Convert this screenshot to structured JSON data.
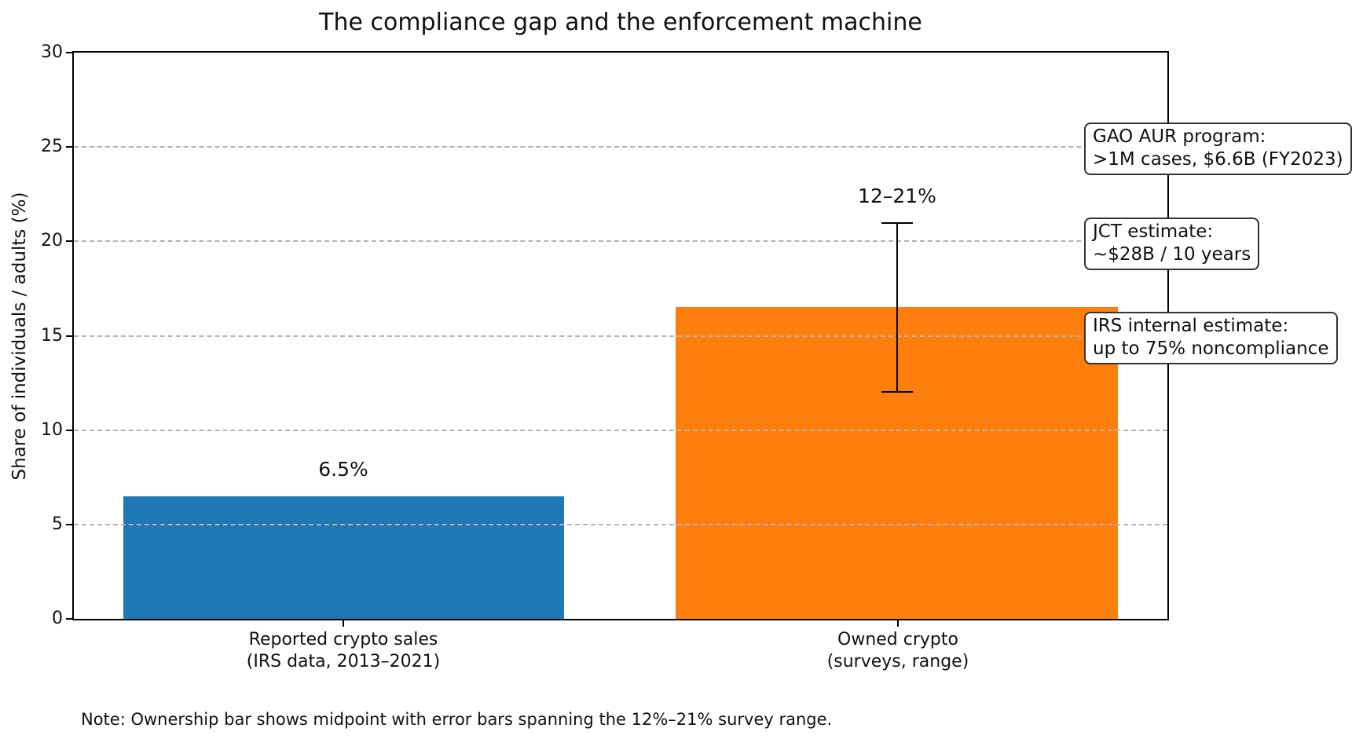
{
  "chart_data": {
    "type": "bar",
    "title": "The compliance gap and the enforcement machine",
    "ylabel": "Share of individuals / adults (%)",
    "xlabel": "",
    "ylim": [
      0,
      30
    ],
    "yticks": [
      0,
      5,
      10,
      15,
      20,
      25,
      30
    ],
    "ytick_labels": [
      "0",
      "5",
      "10",
      "15",
      "20",
      "25",
      "30"
    ],
    "grid": {
      "axis": "y",
      "style": "dashed",
      "color": "#b4b4b4",
      "on": true
    },
    "legend_position": "none",
    "categories": [
      "Reported crypto sales (IRS data, 2013–2021)",
      "Owned crypto (surveys, range)"
    ],
    "xtick_lines": [
      [
        "Reported crypto sales",
        "(IRS data, 2013–2021)"
      ],
      [
        "Owned crypto",
        "(surveys, range)"
      ]
    ],
    "values": [
      6.5,
      16.5
    ],
    "bar_colors": [
      "#1f77b4",
      "#ff7f0e"
    ],
    "bar_value_labels": [
      "6.5%",
      "12–21%"
    ],
    "error_bar": {
      "bar_index": 1,
      "low": 12,
      "high": 21,
      "midpoint": 16.5,
      "color": "#000000"
    },
    "annotations": [
      {
        "lines": [
          "GAO AUR program:",
          ">1M cases, $6.6B (FY2023)"
        ]
      },
      {
        "lines": [
          "JCT estimate:",
          "~$28B / 10 years"
        ]
      },
      {
        "lines": [
          "IRS internal estimate:",
          "up to 75% noncompliance"
        ]
      }
    ],
    "note": "Note: Ownership bar shows midpoint with error bars spanning the 12%–21% survey range."
  },
  "colors": {
    "background": "#ffffff",
    "spine": "#000000",
    "bar_blue": "#1f77b4",
    "bar_orange": "#ff7f0e",
    "grid": "#b4b4b4",
    "annotation_border": "#333333"
  }
}
